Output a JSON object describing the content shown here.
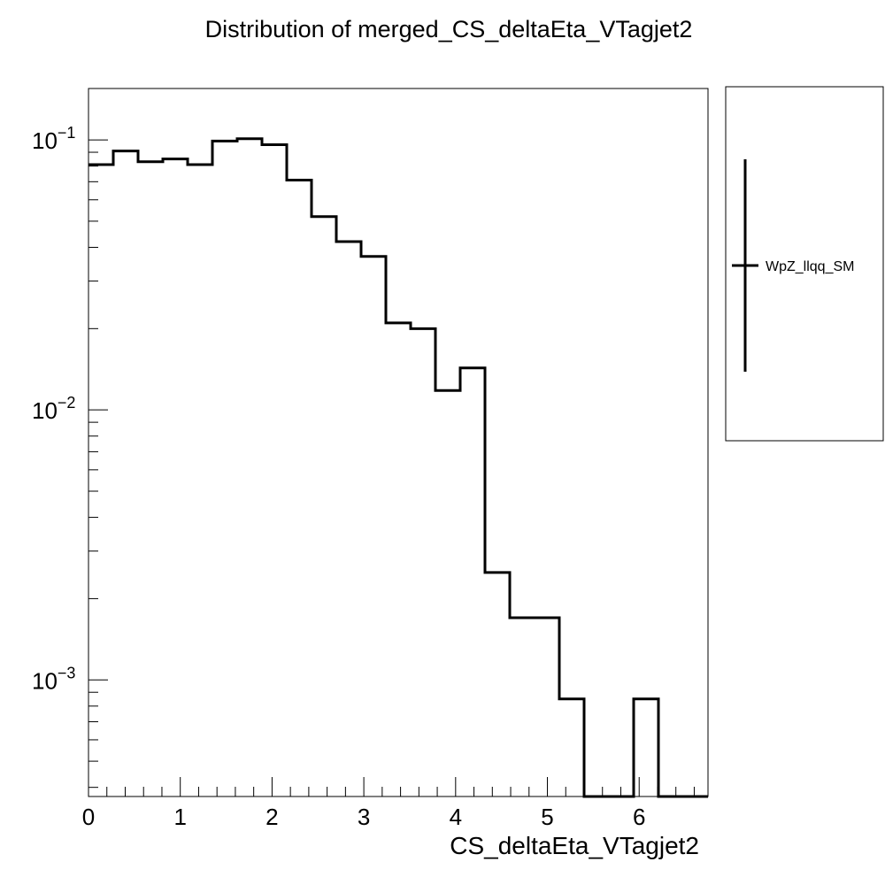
{
  "chart_data": {
    "type": "histogram-step",
    "title": "Distribution of merged_CS_deltaEta_VTagjet2",
    "xlabel": "CS_deltaEta_VTagjet2",
    "ylabel": "",
    "xlim": [
      0,
      6.75
    ],
    "ylim": [
      0.00037,
      0.155
    ],
    "yscale": "log",
    "x_ticks": [
      0,
      1,
      2,
      3,
      4,
      5,
      6
    ],
    "x_tick_labels": [
      "0",
      "1",
      "2",
      "3",
      "4",
      "5",
      "6"
    ],
    "y_major_ticks": [
      {
        "value": 0.1,
        "base": "10",
        "exp": "−1"
      },
      {
        "value": 0.01,
        "base": "10",
        "exp": "−2"
      },
      {
        "value": 0.001,
        "base": "10",
        "exp": "−3"
      }
    ],
    "bin_width": 0.27,
    "series": [
      {
        "name": "WpZ_llqq_SM",
        "color": "#000000",
        "bin_edges": [
          0,
          0.27,
          0.54,
          0.81,
          1.08,
          1.35,
          1.62,
          1.89,
          2.16,
          2.43,
          2.7,
          2.97,
          3.24,
          3.51,
          3.78,
          4.05,
          4.32,
          4.59,
          4.86,
          5.13,
          5.4,
          5.67,
          5.94,
          6.21,
          6.48,
          6.75
        ],
        "values": [
          0.081,
          0.091,
          0.083,
          0.085,
          0.081,
          0.099,
          0.101,
          0.096,
          0.071,
          0.052,
          0.042,
          0.037,
          0.021,
          0.02,
          0.0118,
          0.0143,
          0.0025,
          0.0017,
          0.0017,
          0.00085,
          0.00037,
          0.00037,
          0.00085,
          0.00037,
          0.00037
        ]
      }
    ],
    "legend": {
      "position": "right",
      "entries": [
        "WpZ_llqq_SM"
      ]
    },
    "grid": false
  }
}
